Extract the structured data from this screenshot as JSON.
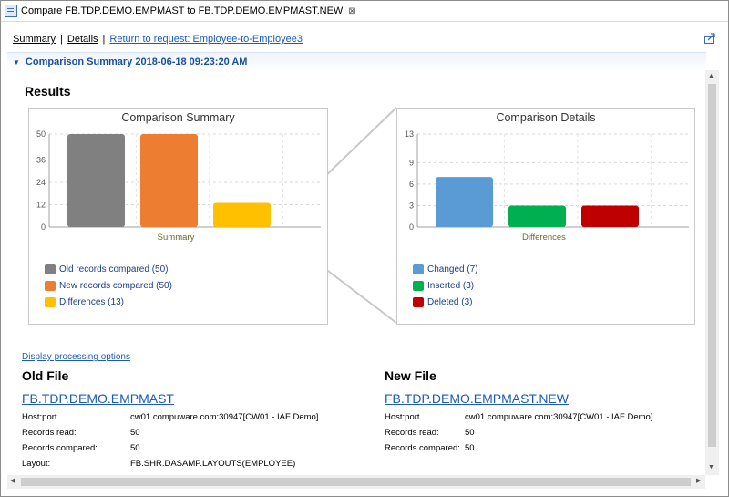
{
  "tab": {
    "title": "Compare FB.TDP.DEMO.EMPMAST to FB.TDP.DEMO.EMPMAST.NEW",
    "close": "⊠"
  },
  "toolbar": {
    "summary": "Summary",
    "sep": "|",
    "details": "Details",
    "return_link": "Return to request: Employee-to-Employee3"
  },
  "section": {
    "title": "Comparison Summary 2018-06-18 09:23:20 AM"
  },
  "results_title": "Results",
  "chart_data": [
    {
      "type": "bar",
      "title": "Comparison Summary",
      "xlabel": "Summary",
      "yticks": [
        0,
        12,
        24,
        36,
        50
      ],
      "ylim": [
        0,
        50
      ],
      "grid": true,
      "legend_position": "bottom",
      "series": [
        {
          "name": "Old records compared (50)",
          "value": 50,
          "color": "#808080"
        },
        {
          "name": "New records compared (50)",
          "value": 50,
          "color": "#ed7d31"
        },
        {
          "name": "Differences (13)",
          "value": 13,
          "color": "#ffc000"
        }
      ]
    },
    {
      "type": "bar",
      "title": "Comparison Details",
      "xlabel": "Differences",
      "yticks": [
        0,
        3,
        6,
        9,
        13
      ],
      "ylim": [
        0,
        13
      ],
      "grid": true,
      "legend_position": "bottom",
      "series": [
        {
          "name": "Changed (7)",
          "value": 7,
          "color": "#5b9bd5"
        },
        {
          "name": "Inserted (3)",
          "value": 3,
          "color": "#00b050"
        },
        {
          "name": "Deleted (3)",
          "value": 3,
          "color": "#c00000"
        }
      ]
    }
  ],
  "processing_link": "Display processing options",
  "old_file": {
    "heading": "Old File",
    "name": "FB.TDP.DEMO.EMPMAST",
    "rows": [
      {
        "label": "Host:port",
        "value": "cw01.compuware.com:30947[CW01 - IAF Demo]"
      },
      {
        "label": "Records read:",
        "value": "50"
      },
      {
        "label": "Records compared:",
        "value": "50"
      },
      {
        "label": "Layout:",
        "value": "FB.SHR.DASAMP.LAYOUTS(EMPLOYEE)"
      }
    ]
  },
  "new_file": {
    "heading": "New File",
    "name": "FB.TDP.DEMO.EMPMAST.NEW",
    "rows": [
      {
        "label": "Host:port",
        "value": "cw01.compuware.com:30947[CW01 - IAF Demo]"
      },
      {
        "label": "Records read:",
        "value": "50"
      },
      {
        "label": "Records compared:",
        "value": "50"
      }
    ]
  }
}
